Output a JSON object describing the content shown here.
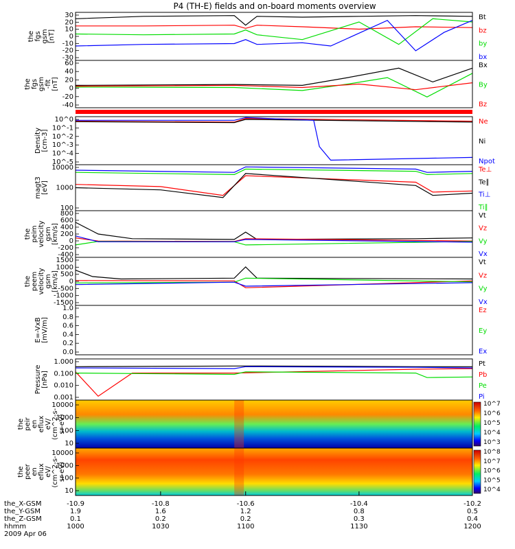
{
  "title": "P4 (TH-E) fields and on-board moments overview",
  "colors": {
    "black": "#000000",
    "red": "#ff0000",
    "green": "#00dd00",
    "blue": "#0000ff"
  },
  "chart_data": [
    {
      "id": "fgs",
      "type": "line",
      "ylabel": [
        "the",
        "fgs",
        "gsm",
        "[nT]"
      ],
      "yticks": [
        "30",
        "20",
        "10",
        "0",
        "-10",
        "-20",
        "-30"
      ],
      "ylim": [
        -30,
        30
      ],
      "legend": [
        {
          "label": "Bt",
          "color": "black"
        },
        {
          "label": "bz",
          "color": "red"
        },
        {
          "label": "by",
          "color": "green"
        },
        {
          "label": "bx",
          "color": "blue"
        }
      ],
      "series": [
        {
          "name": "Bt",
          "color": "black",
          "x": [
            -10.9,
            -10.78,
            -10.62,
            -10.6,
            -10.58,
            -10.5,
            -10.4,
            -10.3,
            -10.2
          ],
          "y": [
            22,
            25,
            26,
            14,
            25,
            24,
            25,
            26,
            25
          ]
        },
        {
          "name": "bz",
          "color": "red",
          "x": [
            -10.9,
            -10.78,
            -10.62,
            -10.6,
            -10.58,
            -10.5,
            -10.4,
            -10.3,
            -10.2
          ],
          "y": [
            13,
            13,
            14,
            10,
            14,
            12,
            9,
            12,
            11
          ]
        },
        {
          "name": "by",
          "color": "green",
          "x": [
            -10.9,
            -10.78,
            -10.62,
            -10.6,
            -10.58,
            -10.5,
            -10.4,
            -10.33,
            -10.27,
            -10.2
          ],
          "y": [
            3,
            2,
            3,
            8,
            2,
            -4,
            18,
            -10,
            22,
            18
          ]
        },
        {
          "name": "bx",
          "color": "blue",
          "x": [
            -10.9,
            -10.78,
            -10.62,
            -10.6,
            -10.58,
            -10.5,
            -10.45,
            -10.35,
            -10.3,
            -10.25,
            -10.2
          ],
          "y": [
            -12,
            -10,
            -9,
            -4,
            -10,
            -8,
            -12,
            20,
            -18,
            5,
            20
          ]
        }
      ]
    },
    {
      "id": "fgs-gse",
      "type": "line",
      "ylabel": [
        "the",
        "fgs",
        "gsm",
        "-fit",
        "[nT]"
      ],
      "yticks": [
        "60",
        "40",
        "20",
        "0",
        "-20",
        "-40"
      ],
      "ylim": [
        -50,
        60
      ],
      "legend": [
        {
          "label": "Bx",
          "color": "black"
        },
        {
          "label": "By",
          "color": "green"
        },
        {
          "label": "Bz",
          "color": "red"
        }
      ],
      "series": [
        {
          "name": "Bx",
          "color": "black",
          "x": [
            -10.9,
            -10.62,
            -10.5,
            -10.42,
            -10.33,
            -10.27,
            -10.2
          ],
          "y": [
            2,
            4,
            2,
            20,
            42,
            10,
            42
          ]
        },
        {
          "name": "By",
          "color": "green",
          "x": [
            -10.9,
            -10.62,
            -10.5,
            -10.42,
            -10.35,
            -10.28,
            -10.2
          ],
          "y": [
            -2,
            -3,
            -10,
            5,
            20,
            -25,
            30
          ]
        },
        {
          "name": "Bz",
          "color": "red",
          "x": [
            -10.9,
            -10.62,
            -10.5,
            -10.4,
            -10.3,
            -10.2
          ],
          "y": [
            0,
            2,
            -3,
            5,
            -8,
            8
          ]
        }
      ]
    },
    {
      "id": "density",
      "type": "line",
      "ylabel": [
        "Density",
        "[cm-3]"
      ],
      "yticks": [
        "10^0",
        "10^-1",
        "10^-2",
        "10^-3",
        "10^-4",
        "10^-5"
      ],
      "ylim": [
        -5,
        0.3
      ],
      "log": true,
      "legend": [
        {
          "label": "Ne",
          "color": "red"
        },
        {
          "label": "Ni",
          "color": "black"
        },
        {
          "label": "Npot",
          "color": "blue"
        }
      ],
      "series": [
        {
          "name": "Ne",
          "color": "red",
          "x": [
            -10.9,
            -10.62,
            -10.6,
            -10.2
          ],
          "y": [
            -0.2,
            -0.3,
            0.1,
            -0.2
          ]
        },
        {
          "name": "Ni",
          "color": "black",
          "x": [
            -10.9,
            -10.62,
            -10.6,
            -10.2
          ],
          "y": [
            -0.25,
            -0.35,
            0.0,
            -0.3
          ]
        },
        {
          "name": "Npot",
          "color": "blue",
          "x": [
            -10.9,
            -10.62,
            -10.6,
            -10.48,
            -10.47,
            -10.45,
            -10.2
          ],
          "y": [
            -0.1,
            -0.1,
            0.2,
            -0.1,
            -3.0,
            -4.5,
            -4.2
          ]
        }
      ]
    },
    {
      "id": "temp",
      "type": "line",
      "ylabel": [
        "magt3",
        "[eV]"
      ],
      "yticks": [
        "10000",
        "1000",
        "100"
      ],
      "ylim": [
        2,
        4.1
      ],
      "log": true,
      "legend": [
        {
          "label": "Te⊥",
          "color": "red"
        },
        {
          "label": "Te∥",
          "color": "black"
        },
        {
          "label": "Ti⊥",
          "color": "blue"
        },
        {
          "label": "Ti∥",
          "color": "green"
        }
      ],
      "series": [
        {
          "name": "Ti⊥",
          "color": "blue",
          "x": [
            -10.9,
            -10.62,
            -10.6,
            -10.3,
            -10.28,
            -10.2
          ],
          "y": [
            3.85,
            3.75,
            4.0,
            3.9,
            3.75,
            3.8
          ]
        },
        {
          "name": "Ti∥",
          "color": "green",
          "x": [
            -10.9,
            -10.62,
            -10.6,
            -10.3,
            -10.28,
            -10.2
          ],
          "y": [
            3.75,
            3.65,
            3.9,
            3.8,
            3.65,
            3.7
          ]
        },
        {
          "name": "Te⊥",
          "color": "red",
          "x": [
            -10.9,
            -10.75,
            -10.64,
            -10.6,
            -10.3,
            -10.27,
            -10.2
          ],
          "y": [
            3.2,
            3.1,
            2.7,
            3.6,
            3.3,
            2.85,
            2.9
          ]
        },
        {
          "name": "Te∥",
          "color": "black",
          "x": [
            -10.9,
            -10.75,
            -10.64,
            -10.6,
            -10.3,
            -10.27,
            -10.2
          ],
          "y": [
            3.05,
            2.95,
            2.6,
            3.7,
            3.15,
            2.7,
            2.8
          ]
        }
      ]
    },
    {
      "id": "peim",
      "type": "line",
      "ylabel": [
        "the",
        "peim",
        "velocity",
        "gsm",
        "[km/s]"
      ],
      "yticks": [
        "800",
        "600",
        "400",
        "200",
        "0",
        "-200",
        "-400"
      ],
      "ylim": [
        -400,
        800
      ],
      "legend": [
        {
          "label": "Vt",
          "color": "black"
        },
        {
          "label": "Vz",
          "color": "red"
        },
        {
          "label": "Vy",
          "color": "green"
        },
        {
          "label": "Vx",
          "color": "blue"
        }
      ],
      "series": [
        {
          "name": "Vt",
          "color": "black",
          "x": [
            -10.9,
            -10.86,
            -10.8,
            -10.62,
            -10.6,
            -10.58,
            -10.3,
            -10.2
          ],
          "y": [
            500,
            200,
            80,
            60,
            250,
            60,
            80,
            100
          ]
        },
        {
          "name": "Vz",
          "color": "red",
          "x": [
            -10.9,
            -10.86,
            -10.62,
            -10.6,
            -10.2
          ],
          "y": [
            100,
            20,
            10,
            80,
            20
          ]
        },
        {
          "name": "Vy",
          "color": "green",
          "x": [
            -10.9,
            -10.86,
            -10.62,
            -10.6,
            -10.2
          ],
          "y": [
            -80,
            10,
            0,
            -80,
            10
          ]
        },
        {
          "name": "Vx",
          "color": "blue",
          "x": [
            -10.9,
            -10.86,
            -10.62,
            -10.6,
            -10.2
          ],
          "y": [
            150,
            0,
            0,
            60,
            -10
          ]
        }
      ]
    },
    {
      "id": "peem",
      "type": "line",
      "ylabel": [
        "the",
        "peem",
        "velocity",
        "gsm",
        "[km/s]"
      ],
      "yticks": [
        "1500",
        "1000",
        "500",
        "0",
        "-500",
        "-1000",
        "-1500"
      ],
      "ylim": [
        -1500,
        1500
      ],
      "legend": [
        {
          "label": "Vt",
          "color": "black"
        },
        {
          "label": "Vz",
          "color": "red"
        },
        {
          "label": "Vy",
          "color": "green"
        },
        {
          "label": "Vx",
          "color": "blue"
        }
      ],
      "series": [
        {
          "name": "Vt",
          "color": "black",
          "x": [
            -10.9,
            -10.87,
            -10.82,
            -10.62,
            -10.6,
            -10.58,
            -10.2
          ],
          "y": [
            700,
            300,
            150,
            200,
            900,
            200,
            150
          ]
        },
        {
          "name": "Vz",
          "color": "red",
          "x": [
            -10.9,
            -10.62,
            -10.6,
            -10.2
          ],
          "y": [
            50,
            30,
            -400,
            30
          ]
        },
        {
          "name": "Vy",
          "color": "green",
          "x": [
            -10.9,
            -10.62,
            -10.6,
            -10.2
          ],
          "y": [
            -100,
            -50,
            200,
            -30
          ]
        },
        {
          "name": "Vx",
          "color": "blue",
          "x": [
            -10.9,
            -10.62,
            -10.6,
            -10.2
          ],
          "y": [
            -200,
            -50,
            -300,
            -80
          ]
        }
      ]
    },
    {
      "id": "efield",
      "type": "line",
      "ylabel": [
        "E=-VxB",
        "[mV/m]"
      ],
      "yticks": [
        "1.0",
        "0.8",
        "0.6",
        "0.4",
        "0.2",
        "0.0"
      ],
      "ylim": [
        0,
        1
      ],
      "legend": [
        {
          "label": "Ez",
          "color": "red"
        },
        {
          "label": "Ey",
          "color": "green"
        },
        {
          "label": "Ex",
          "color": "blue"
        }
      ],
      "series": []
    },
    {
      "id": "pressure",
      "type": "line",
      "ylabel": [
        "Pressure",
        "[nPa]"
      ],
      "yticks": [
        "1.000",
        "0.100",
        "0.010",
        "0.001"
      ],
      "ylim": [
        -3.2,
        0
      ],
      "log": true,
      "legend": [
        {
          "label": "Pt",
          "color": "black"
        },
        {
          "label": "Pb",
          "color": "red"
        },
        {
          "label": "Pe",
          "color": "green"
        },
        {
          "label": "Pi",
          "color": "blue"
        }
      ],
      "series": [
        {
          "name": "Pt",
          "color": "black",
          "x": [
            -10.9,
            -10.6,
            -10.3,
            -10.2
          ],
          "y": [
            -0.6,
            -0.55,
            -0.6,
            -0.6
          ]
        },
        {
          "name": "Pb",
          "color": "red",
          "x": [
            -10.9,
            -10.86,
            -10.8,
            -10.62,
            -10.3,
            -10.2
          ],
          "y": [
            -1.0,
            -2.9,
            -1.1,
            -1.1,
            -0.8,
            -0.75
          ]
        },
        {
          "name": "Pe",
          "color": "green",
          "x": [
            -10.9,
            -10.62,
            -10.6,
            -10.3,
            -10.28,
            -10.2
          ],
          "y": [
            -1.1,
            -1.2,
            -1.0,
            -1.1,
            -1.45,
            -1.4
          ]
        },
        {
          "name": "Pi",
          "color": "blue",
          "x": [
            -10.9,
            -10.62,
            -10.6,
            -10.3,
            -10.2
          ],
          "y": [
            -0.7,
            -0.75,
            -0.6,
            -0.65,
            -0.7
          ]
        }
      ]
    },
    {
      "id": "peir",
      "type": "heatmap",
      "ylabel": [
        "the",
        "peir",
        "en",
        "eflux",
        "eV/",
        "(cm^2-s-",
        "sr-eV)"
      ],
      "yticks": [
        "10000",
        "1000",
        "100",
        "10"
      ],
      "colorbar": [
        "10^7",
        "10^6",
        "10^5",
        "10^4",
        "10^3"
      ]
    },
    {
      "id": "peer",
      "type": "heatmap",
      "ylabel": [
        "the",
        "peer",
        "en",
        "eflux",
        "eV/",
        "(cm^2-s-",
        "sr-eV)"
      ],
      "yticks": [
        "10000",
        "1000",
        "100",
        "10"
      ],
      "colorbar": [
        "10^8",
        "10^7",
        "10^6",
        "10^5",
        "10^4"
      ]
    }
  ],
  "xaxis": {
    "ticks": [
      "-10.9",
      "-10.8",
      "-10.6",
      "-10.4",
      "-10.2"
    ],
    "rows": [
      {
        "label": "the_X-GSM",
        "values": [
          "-10.9",
          "-10.8",
          "-10.6",
          "-10.4",
          "-10.2"
        ]
      },
      {
        "label": "the_Y-GSM",
        "values": [
          "1.9",
          "1.6",
          "1.2",
          "0.8",
          "0.5"
        ]
      },
      {
        "label": "the_Z-GSM",
        "values": [
          "0.1",
          "0.2",
          "0.2",
          "0.3",
          "0.4"
        ]
      },
      {
        "label": "hhmm",
        "values": [
          "1000",
          "1030",
          "1100",
          "1130",
          "1200"
        ]
      }
    ],
    "date": "2009 Apr 06"
  }
}
